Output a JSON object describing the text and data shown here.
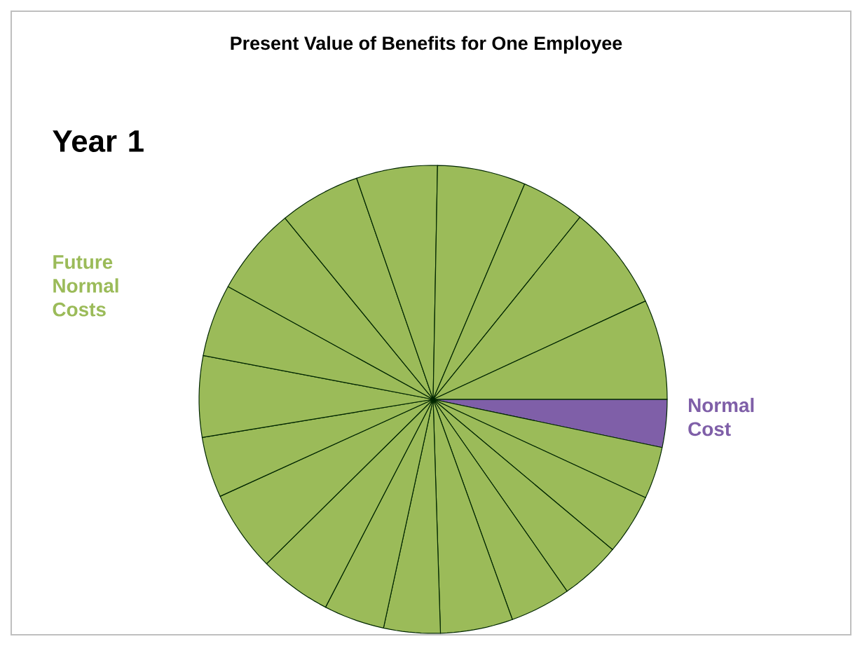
{
  "chart_data": {
    "type": "pie",
    "title": "Present Value of Benefits for One Employee",
    "annotations": [
      "Year 1",
      "Future Normal Costs"
    ],
    "categories": [
      "Normal Cost",
      null,
      null,
      null,
      null,
      null,
      null,
      null,
      null,
      null,
      null,
      null,
      null,
      null,
      null,
      null,
      null,
      null,
      null,
      null
    ],
    "values": [
      3.3,
      3.6,
      4.2,
      4.2,
      4.2,
      5.0,
      3.9,
      4.2,
      5.0,
      5.6,
      4.2,
      5.6,
      5.0,
      6.1,
      5.6,
      5.6,
      6.1,
      4.4,
      7.3,
      6.9
    ],
    "colors": [
      "#7f5fa8",
      "#9bbb59",
      "#9bbb59",
      "#9bbb59",
      "#9bbb59",
      "#9bbb59",
      "#9bbb59",
      "#9bbb59",
      "#9bbb59",
      "#9bbb59",
      "#9bbb59",
      "#9bbb59",
      "#9bbb59",
      "#9bbb59",
      "#9bbb59",
      "#9bbb59",
      "#9bbb59",
      "#9bbb59",
      "#9bbb59",
      "#9bbb59"
    ]
  }
}
